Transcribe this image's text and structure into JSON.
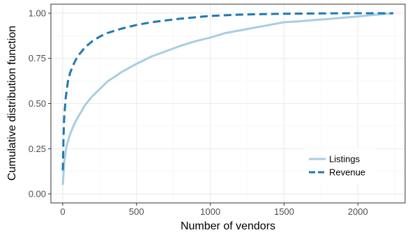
{
  "chart_data": {
    "type": "line",
    "xlabel": "Number of vendors",
    "ylabel": "Cumulative distribution function",
    "xlim": [
      -80,
      2320
    ],
    "ylim": [
      -0.05,
      1.05
    ],
    "x_ticks": [
      0,
      500,
      1000,
      1500,
      2000
    ],
    "x_tick_labels": [
      "0",
      "500",
      "1000",
      "1500",
      "2000"
    ],
    "y_ticks": [
      0,
      0.25,
      0.5,
      0.75,
      1.0
    ],
    "y_tick_labels": [
      "0.00",
      "0.25",
      "0.50",
      "0.75",
      "1.00"
    ],
    "grid": true,
    "legend_position": "bottom-right",
    "series": [
      {
        "name": "Listings",
        "color": "#a6cee3",
        "style": "solid",
        "x": [
          1,
          10,
          25,
          50,
          75,
          100,
          150,
          200,
          250,
          300,
          400,
          500,
          600,
          700,
          800,
          900,
          1000,
          1100,
          1200,
          1300,
          1400,
          1500,
          1600,
          1700,
          1800,
          1900,
          2000,
          2100,
          2200,
          2240
        ],
        "y": [
          0.05,
          0.17,
          0.26,
          0.33,
          0.38,
          0.42,
          0.49,
          0.54,
          0.58,
          0.62,
          0.675,
          0.72,
          0.76,
          0.79,
          0.82,
          0.845,
          0.865,
          0.89,
          0.905,
          0.92,
          0.935,
          0.95,
          0.955,
          0.962,
          0.968,
          0.975,
          0.982,
          0.99,
          0.997,
          1.0
        ]
      },
      {
        "name": "Revenue",
        "color": "#1f78b4",
        "style": "dashed",
        "x": [
          1,
          5,
          10,
          20,
          35,
          50,
          75,
          100,
          150,
          200,
          250,
          300,
          400,
          500,
          600,
          700,
          800,
          1000,
          1200,
          1400,
          1600,
          1800,
          2000,
          2200,
          2240
        ],
        "y": [
          0.13,
          0.3,
          0.42,
          0.53,
          0.62,
          0.67,
          0.72,
          0.76,
          0.81,
          0.845,
          0.87,
          0.89,
          0.915,
          0.935,
          0.95,
          0.96,
          0.97,
          0.985,
          0.992,
          0.996,
          0.998,
          0.999,
          1.0,
          1.0,
          1.0
        ]
      }
    ]
  }
}
